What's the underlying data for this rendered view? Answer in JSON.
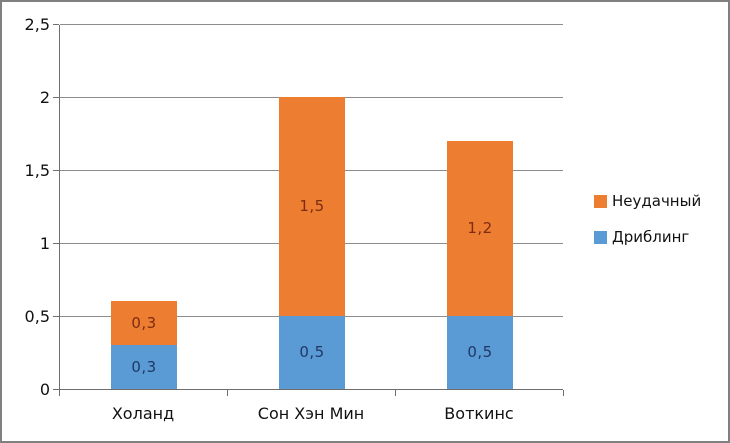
{
  "chart_data": {
    "type": "bar",
    "stacked": true,
    "title": "",
    "xlabel": "",
    "ylabel": "",
    "categories": [
      "Холанд",
      "Сон Хэн Мин",
      "Воткинс"
    ],
    "series": [
      {
        "name": "Дриблинг",
        "color": "#5b9bd5",
        "label_color": "#1f3864",
        "values": [
          0.3,
          0.5,
          0.5
        ],
        "labels": [
          "0,3",
          "0,5",
          "0,5"
        ]
      },
      {
        "name": "Неудачный",
        "color": "#ed7d31",
        "label_color": "#7b2c12",
        "values": [
          0.3,
          1.5,
          1.2
        ],
        "labels": [
          "0,3",
          "1,5",
          "1,2"
        ]
      }
    ],
    "y_axis": {
      "min": 0,
      "max": 2.5,
      "ticks": [
        0,
        0.5,
        1,
        1.5,
        2,
        2.5
      ],
      "tick_labels": [
        "0",
        "0,5",
        "1",
        "1,5",
        "2",
        "2,5"
      ]
    },
    "grid": true,
    "legend": {
      "position": "right",
      "items": [
        {
          "name": "Неудачный",
          "color": "#ed7d31"
        },
        {
          "name": "Дриблинг",
          "color": "#5b9bd5"
        }
      ]
    }
  }
}
